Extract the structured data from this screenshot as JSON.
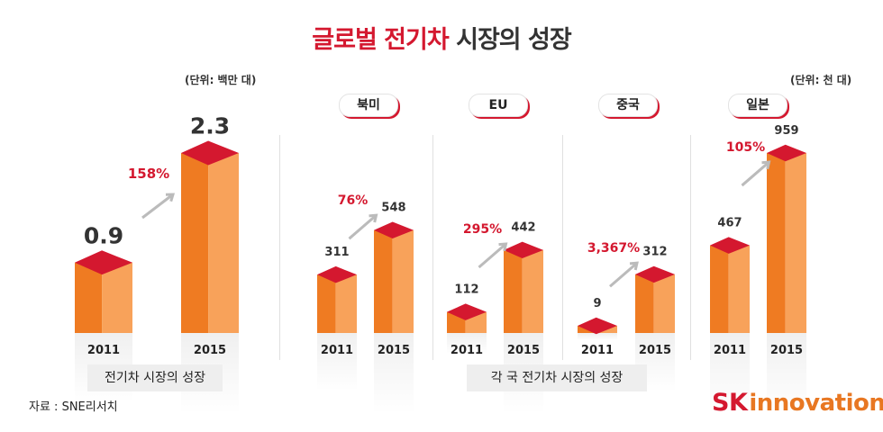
{
  "title": {
    "part1": "글로벌 전기차",
    "part2": " 시장의 성장"
  },
  "left_unit": "(단위: 백만 대)",
  "right_unit": "(단위: 천 대)",
  "left_caption": "전기차 시장의 성장",
  "right_caption": "각 국 전기차 시장의 성장",
  "source": "자료 : SNE리서치",
  "logo": {
    "sk": "SK",
    "text": "innovation"
  },
  "colors": {
    "bar_front": "#ef7b22",
    "bar_side": "#f8a25a",
    "bar_top": "#d4182f",
    "growth": "#d4182f",
    "arrow": "#bbbbbb"
  },
  "chart_data": [
    {
      "type": "bar",
      "title": "글로벌 전기차 시장의 성장",
      "unit": "(단위: 백만 대)",
      "categories": [
        "2011",
        "2015"
      ],
      "values": [
        0.9,
        2.3
      ],
      "labels": [
        "0.9",
        "2.3"
      ],
      "growth": "158%",
      "ylim": [
        0,
        2.6
      ]
    },
    {
      "type": "bar",
      "region": "북미",
      "unit": "(단위: 천 대)",
      "categories": [
        "2011",
        "2015"
      ],
      "values": [
        311,
        548
      ],
      "labels": [
        "311",
        "548"
      ],
      "growth": "76%",
      "ylim": [
        0,
        1100
      ]
    },
    {
      "type": "bar",
      "region": "EU",
      "unit": "(단위: 천 대)",
      "categories": [
        "2011",
        "2015"
      ],
      "values": [
        112,
        442
      ],
      "labels": [
        "112",
        "442"
      ],
      "growth": "295%",
      "ylim": [
        0,
        1100
      ]
    },
    {
      "type": "bar",
      "region": "중국",
      "unit": "(단위: 천 대)",
      "categories": [
        "2011",
        "2015"
      ],
      "values": [
        9,
        312
      ],
      "labels": [
        "9",
        "312"
      ],
      "growth": "3,367%",
      "ylim": [
        0,
        1100
      ]
    },
    {
      "type": "bar",
      "region": "일본",
      "unit": "(단위: 천 대)",
      "categories": [
        "2011",
        "2015"
      ],
      "values": [
        467,
        959
      ],
      "labels": [
        "467",
        "959"
      ],
      "growth": "105%",
      "ylim": [
        0,
        1100
      ]
    }
  ]
}
